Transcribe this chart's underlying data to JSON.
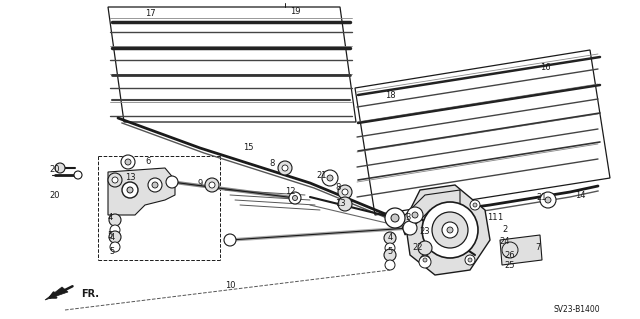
{
  "bg_color": "#ffffff",
  "figsize": [
    6.4,
    3.19
  ],
  "dpi": 100,
  "annotation_code": "SV23-B1400",
  "line_color": "#1a1a1a",
  "gray_fill": "#c8c8c8",
  "light_gray": "#e0e0e0"
}
